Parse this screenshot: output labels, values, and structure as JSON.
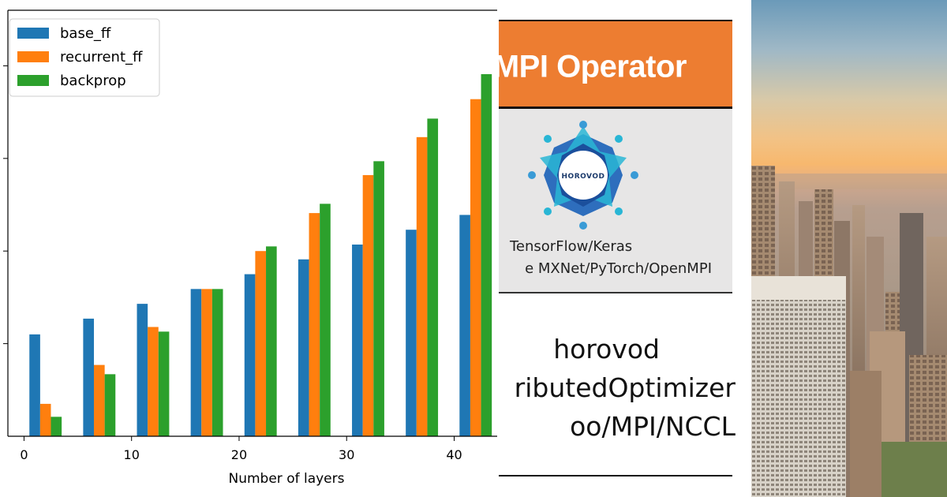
{
  "chart_data": {
    "type": "bar",
    "xlabel": "Number of layers",
    "ylabel": "",
    "x_ticks": [
      0,
      10,
      20,
      30,
      40
    ],
    "xlim": [
      -1.5,
      44
    ],
    "ylim": [
      0,
      4.6
    ],
    "categories": [
      2,
      7,
      12,
      17,
      22,
      27,
      32,
      37,
      42
    ],
    "legend_position": "top-left",
    "series": [
      {
        "name": "base_ff",
        "color": "#1f77b4",
        "values": [
          1.1,
          1.27,
          1.43,
          1.59,
          1.75,
          1.91,
          2.07,
          2.23,
          2.39
        ]
      },
      {
        "name": "recurrent_ff",
        "color": "#ff7f0e",
        "values": [
          0.35,
          0.77,
          1.18,
          1.59,
          2.0,
          2.41,
          2.82,
          3.23,
          3.64
        ]
      },
      {
        "name": "backprop",
        "color": "#2ca02c",
        "values": [
          0.21,
          0.67,
          1.13,
          1.59,
          2.05,
          2.51,
          2.97,
          3.43,
          3.91
        ]
      }
    ]
  },
  "slide": {
    "banner_title": "MPI Operator",
    "banner_color": "#ed7d31",
    "logo_text": "HOROVOD",
    "logo_line_1": "TensorFlow/Keras",
    "logo_line_2": "e MXNet/PyTorch/OpenMPI",
    "body_line_1": "horovod",
    "body_line_2": "ributedOptimizer",
    "body_line_3": "oo/MPI/NCCL"
  },
  "photo": {
    "description_icon": "city-skyline-photo"
  }
}
